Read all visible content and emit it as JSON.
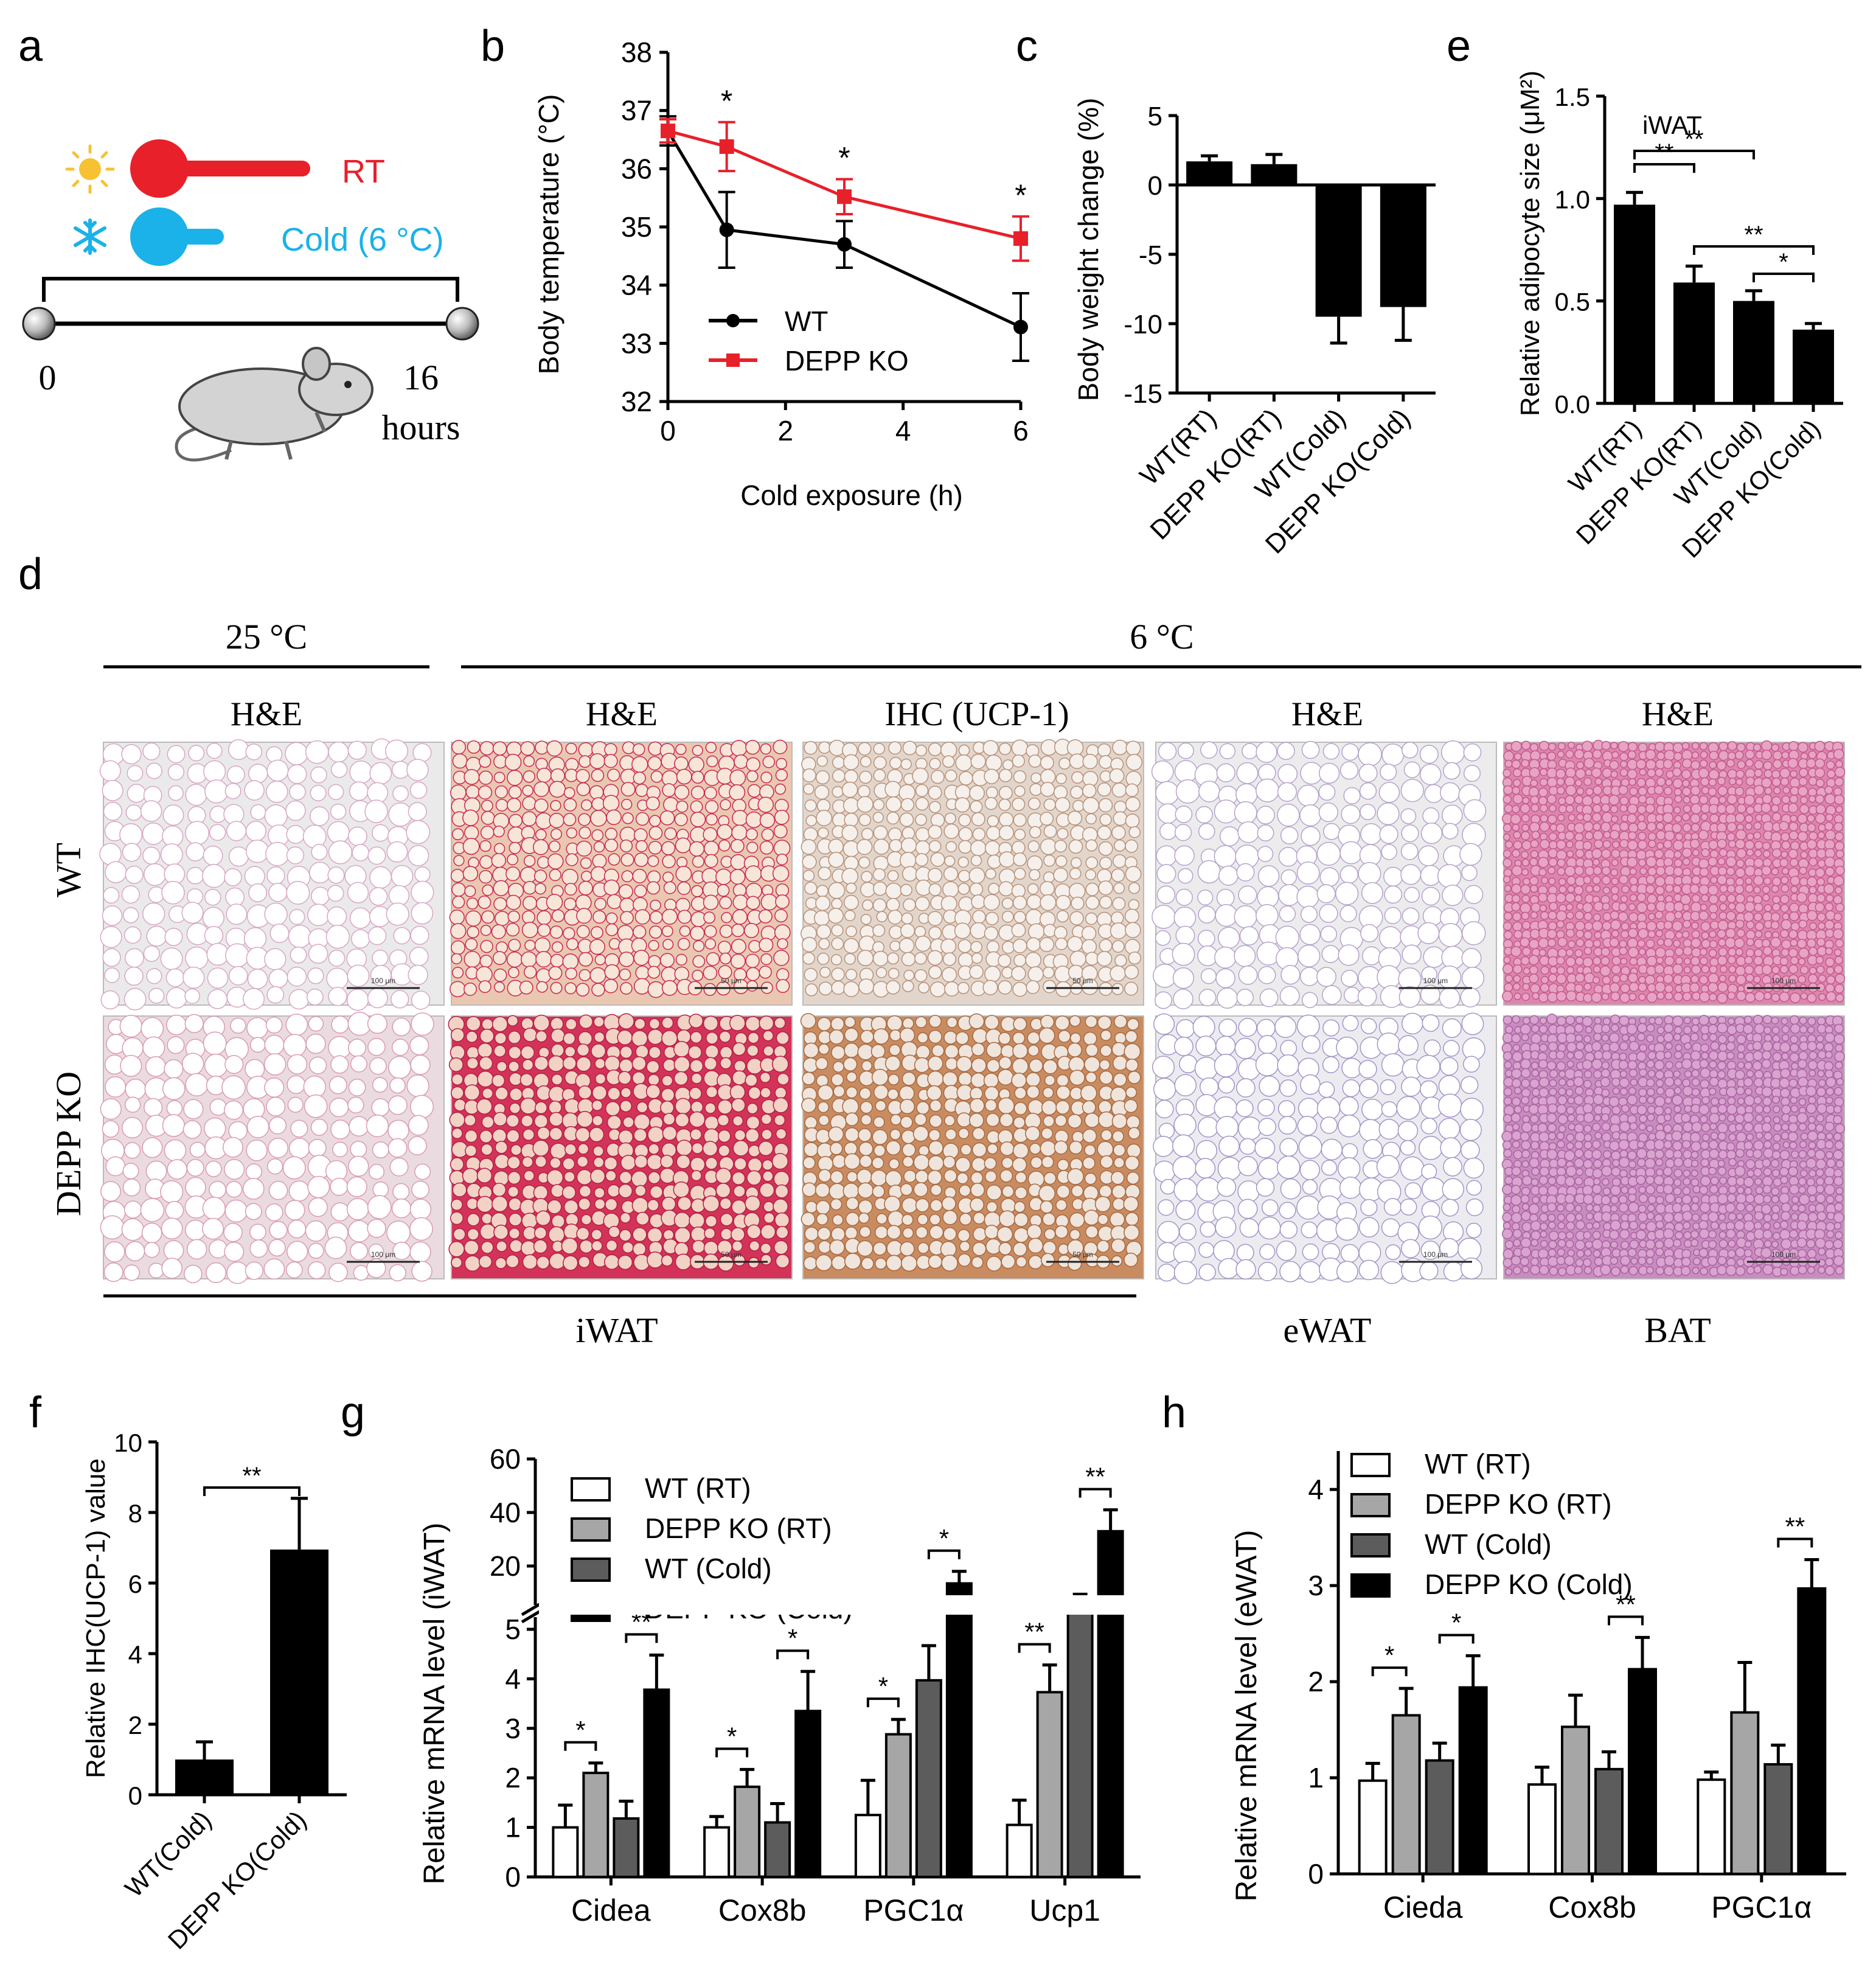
{
  "panel_letters": {
    "a": "a",
    "b": "b",
    "c": "c",
    "d": "d",
    "e": "e",
    "f": "f",
    "g": "g",
    "h": "h"
  },
  "colors": {
    "wt": "#000000",
    "ko": "#e8202a",
    "rt": "#e8202a",
    "cold": "#1ab2e8",
    "sun": "#f7c232"
  },
  "panel_a": {
    "rt_label": "RT",
    "cold_label": "Cold (6 °C)",
    "start_time": "0",
    "end_time": "16",
    "end_unit": "hours",
    "icons": [
      "sun-icon",
      "snowflake-icon",
      "mouse-icon"
    ]
  },
  "panel_d": {
    "temp_left": "25 °C",
    "temp_right": "6 °C",
    "stain_labels": [
      "H&E",
      "H&E",
      "IHC (UCP-1)",
      "H&E",
      "H&E"
    ],
    "row_labels": [
      "WT",
      "DEPP KO"
    ],
    "tissue_labels": {
      "iwat": "iWAT",
      "ewat": "eWAT",
      "bat": "BAT"
    },
    "scale_labels": [
      "100 μm",
      "50 μm",
      "50 μm",
      "100 μm",
      "100 μm",
      "100 μm",
      "50 μm",
      "50 μm",
      "100 μm",
      "100 μm"
    ],
    "tiles": [
      {
        "name": "wt-25c-he-iwat",
        "bg": "#eaeaea",
        "cell": "#ffffff",
        "edge": "#d9a6c5"
      },
      {
        "name": "wt-6c-he-iwat",
        "bg": "#e9c7b0",
        "cell": "#f7e5d8",
        "edge": "#c8284e"
      },
      {
        "name": "wt-6c-ihc-iwat",
        "bg": "#e2d6cc",
        "cell": "#f5f0eb",
        "edge": "#b89078"
      },
      {
        "name": "wt-6c-he-ewat",
        "bg": "#ececec",
        "cell": "#ffffff",
        "edge": "#b6a2cc"
      },
      {
        "name": "wt-6c-he-bat",
        "bg": "#dd86ad",
        "cell": "#e7a5c3",
        "edge": "#c35890"
      },
      {
        "name": "ko-25c-he-iwat",
        "bg": "#eadbe0",
        "cell": "#ffffff",
        "edge": "#dc9ab4"
      },
      {
        "name": "ko-6c-he-iwat",
        "bg": "#d33358",
        "cell": "#f2d2c5",
        "edge": "#b41e44"
      },
      {
        "name": "ko-6c-ihc-iwat",
        "bg": "#c98b60",
        "cell": "#efe5dc",
        "edge": "#a8683f"
      },
      {
        "name": "ko-6c-he-ewat",
        "bg": "#ececf0",
        "cell": "#ffffff",
        "edge": "#a494c8"
      },
      {
        "name": "ko-6c-he-bat",
        "bg": "#c88cc0",
        "cell": "#d9a4cf",
        "edge": "#a9629f"
      }
    ]
  },
  "chart_data": [
    {
      "id": "b",
      "type": "line",
      "title": "",
      "xlabel": "Cold exposure (h)",
      "ylabel": "Body temperature (°C)",
      "xlim": [
        0,
        6
      ],
      "ylim": [
        32,
        38
      ],
      "x_ticks": [
        0,
        2,
        4,
        6
      ],
      "y_ticks": [
        32,
        33,
        34,
        35,
        36,
        37,
        38
      ],
      "x": [
        0,
        1,
        3,
        6
      ],
      "series": [
        {
          "name": "WT",
          "values": [
            36.65,
            34.95,
            34.7,
            33.28
          ],
          "errors": [
            0.25,
            0.65,
            0.4,
            0.58
          ],
          "color": "#000000",
          "marker": "circle"
        },
        {
          "name": "DEPP KO",
          "values": [
            36.65,
            36.38,
            35.52,
            34.8
          ],
          "errors": [
            0.2,
            0.42,
            0.3,
            0.38
          ],
          "color": "#e8202a",
          "marker": "square"
        }
      ],
      "significance": [
        {
          "x": 1,
          "label": "*"
        },
        {
          "x": 3,
          "label": "*"
        },
        {
          "x": 6,
          "label": "*"
        }
      ],
      "legend": "lower-left"
    },
    {
      "id": "c",
      "type": "bar",
      "ylabel": "Body weight change (%)",
      "categories": [
        "WT(RT)",
        "DEPP KO(RT)",
        "WT(Cold)",
        "DEPP KO(Cold)"
      ],
      "values": [
        1.7,
        1.5,
        -9.5,
        -8.8
      ],
      "errors": [
        0.4,
        0.7,
        1.9,
        2.4
      ],
      "ylim": [
        -15,
        5
      ],
      "y_ticks": [
        5,
        0,
        -5,
        -10,
        -15
      ]
    },
    {
      "id": "e",
      "type": "bar",
      "ylabel": "Relative adipocyte size (μM²)",
      "annotation": "iWAT",
      "categories": [
        "WT(RT)",
        "DEPP KO(RT)",
        "WT(Cold)",
        "DEPP KO(Cold)"
      ],
      "values": [
        0.97,
        0.59,
        0.5,
        0.36
      ],
      "errors": [
        0.06,
        0.08,
        0.05,
        0.03
      ],
      "ylim": [
        0,
        1.5
      ],
      "y_ticks": [
        0.0,
        0.5,
        1.0,
        1.5
      ],
      "significance": [
        {
          "from": 0,
          "to": 1,
          "label": "**"
        },
        {
          "from": 0,
          "to": 2,
          "label": "**"
        },
        {
          "from": 1,
          "to": 3,
          "label": "**"
        },
        {
          "from": 2,
          "to": 3,
          "label": "*"
        }
      ]
    },
    {
      "id": "f",
      "type": "bar",
      "ylabel": "Relative IHC(UCP-1) value",
      "categories": [
        "WT(Cold)",
        "DEPP KO(Cold)"
      ],
      "values": [
        1.0,
        6.95
      ],
      "errors": [
        0.5,
        1.45
      ],
      "ylim": [
        0,
        10
      ],
      "y_ticks": [
        0,
        2,
        4,
        6,
        8,
        10
      ],
      "significance": [
        {
          "from": 0,
          "to": 1,
          "label": "**"
        }
      ]
    },
    {
      "id": "g",
      "type": "bar",
      "ylabel": "Relative mRNA level (iWAT)",
      "categories": [
        "Cidea",
        "Cox8b",
        "PGC1α",
        "Ucp1"
      ],
      "y_ticks_lower": [
        0,
        1,
        2,
        3,
        4,
        5
      ],
      "y_ticks_upper": [
        20,
        40,
        60
      ],
      "axis_break": [
        5,
        10
      ],
      "series": [
        {
          "name": "WT (RT)",
          "values": [
            1.0,
            1.0,
            1.25,
            1.05
          ],
          "errors": [
            0.45,
            0.22,
            0.7,
            0.5
          ],
          "fill": "#ffffff"
        },
        {
          "name": "DEPP KO (RT)",
          "values": [
            2.1,
            1.82,
            2.88,
            3.73
          ],
          "errors": [
            0.2,
            0.35,
            0.3,
            0.55
          ],
          "fill": "#a6a6a6"
        },
        {
          "name": "WT (Cold)",
          "values": [
            1.18,
            1.1,
            3.97,
            9.2
          ],
          "errors": [
            0.35,
            0.38,
            0.7,
            0.6
          ],
          "fill": "#5c5c5c"
        },
        {
          "name": "DEPP KO (Cold)",
          "values": [
            3.78,
            3.35,
            13.5,
            33.0
          ],
          "errors": [
            0.7,
            0.8,
            4.5,
            8.0
          ],
          "fill": "#000000"
        }
      ],
      "significance": [
        {
          "cat": 0,
          "from": 0,
          "to": 1,
          "label": "*"
        },
        {
          "cat": 0,
          "from": 2,
          "to": 3,
          "label": "**"
        },
        {
          "cat": 1,
          "from": 0,
          "to": 1,
          "label": "*"
        },
        {
          "cat": 1,
          "from": 2,
          "to": 3,
          "label": "*"
        },
        {
          "cat": 2,
          "from": 0,
          "to": 1,
          "label": "*"
        },
        {
          "cat": 2,
          "from": 2,
          "to": 3,
          "label": "*"
        },
        {
          "cat": 3,
          "from": 0,
          "to": 1,
          "label": "**"
        },
        {
          "cat": 3,
          "from": 2,
          "to": 3,
          "label": "**"
        }
      ],
      "legend": "top-left"
    },
    {
      "id": "h",
      "type": "bar",
      "ylabel": "Relative mRNA level (eWAT)",
      "categories": [
        "Cieda",
        "Cox8b",
        "PGC1α"
      ],
      "ylim": [
        0,
        4.4
      ],
      "y_ticks": [
        0,
        1,
        2,
        3,
        4
      ],
      "series": [
        {
          "name": "WT (RT)",
          "values": [
            0.97,
            0.93,
            0.98
          ],
          "errors": [
            0.18,
            0.18,
            0.08
          ],
          "fill": "#ffffff"
        },
        {
          "name": "DEPP KO (RT)",
          "values": [
            1.65,
            1.53,
            1.68
          ],
          "errors": [
            0.28,
            0.33,
            0.52
          ],
          "fill": "#a6a6a6"
        },
        {
          "name": "WT (Cold)",
          "values": [
            1.18,
            1.09,
            1.14
          ],
          "errors": [
            0.18,
            0.18,
            0.2
          ],
          "fill": "#5c5c5c"
        },
        {
          "name": "DEPP KO (Cold)",
          "values": [
            1.94,
            2.13,
            2.97
          ],
          "errors": [
            0.33,
            0.33,
            0.3
          ],
          "fill": "#000000"
        }
      ],
      "significance": [
        {
          "cat": 0,
          "from": 0,
          "to": 1,
          "label": "*"
        },
        {
          "cat": 0,
          "from": 2,
          "to": 3,
          "label": "*"
        },
        {
          "cat": 1,
          "from": 2,
          "to": 3,
          "label": "**"
        },
        {
          "cat": 2,
          "from": 2,
          "to": 3,
          "label": "**"
        }
      ],
      "legend": "top-left"
    }
  ]
}
